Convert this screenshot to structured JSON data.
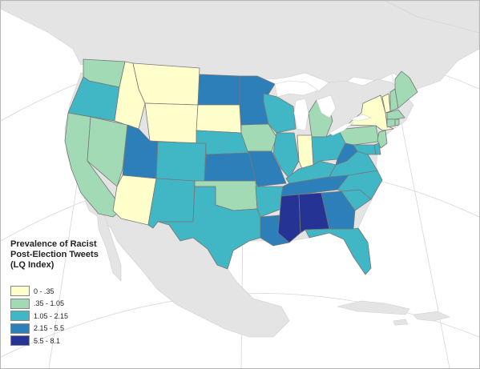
{
  "legend": {
    "title_lines": [
      "Prevalence of Racist",
      "Post-Election Tweets",
      "(LQ Index)"
    ],
    "items": [
      {
        "label": "0 - .35",
        "color": "#ffffcc"
      },
      {
        "label": ".35 - 1.05",
        "color": "#a1dab4"
      },
      {
        "label": "1.05 - 2.15",
        "color": "#41b6c4"
      },
      {
        "label": "2.15 - 5.5",
        "color": "#2c7fb8"
      },
      {
        "label": "5.5 - 8.1",
        "color": "#253494"
      }
    ]
  },
  "map_colors": {
    "water": "#ffffff",
    "land": "#e4e4e4",
    "border": "#777777",
    "graticule": "#d6d6d6"
  },
  "states": [
    {
      "id": "WA",
      "class": 1
    },
    {
      "id": "OR",
      "class": 2
    },
    {
      "id": "CA",
      "class": 1
    },
    {
      "id": "NV",
      "class": 1
    },
    {
      "id": "ID",
      "class": 0
    },
    {
      "id": "MT",
      "class": 0
    },
    {
      "id": "WY",
      "class": 0
    },
    {
      "id": "UT",
      "class": 3
    },
    {
      "id": "AZ",
      "class": 0
    },
    {
      "id": "CO",
      "class": 2
    },
    {
      "id": "NM",
      "class": 2
    },
    {
      "id": "ND",
      "class": 3
    },
    {
      "id": "SD",
      "class": 0
    },
    {
      "id": "NE",
      "class": 2
    },
    {
      "id": "KS",
      "class": 3
    },
    {
      "id": "OK",
      "class": 1
    },
    {
      "id": "TX",
      "class": 2
    },
    {
      "id": "MN",
      "class": 3
    },
    {
      "id": "IA",
      "class": 1
    },
    {
      "id": "MO",
      "class": 3
    },
    {
      "id": "AR",
      "class": 2
    },
    {
      "id": "LA",
      "class": 3
    },
    {
      "id": "WI",
      "class": 2
    },
    {
      "id": "IL",
      "class": 2
    },
    {
      "id": "MI",
      "class": 1
    },
    {
      "id": "IN",
      "class": 0
    },
    {
      "id": "OH",
      "class": 2
    },
    {
      "id": "KY",
      "class": 2
    },
    {
      "id": "TN",
      "class": 3
    },
    {
      "id": "MS",
      "class": 4
    },
    {
      "id": "AL",
      "class": 4
    },
    {
      "id": "GA",
      "class": 3
    },
    {
      "id": "FL",
      "class": 2
    },
    {
      "id": "SC",
      "class": 2
    },
    {
      "id": "NC",
      "class": 2
    },
    {
      "id": "VA",
      "class": 2
    },
    {
      "id": "WV",
      "class": 3
    },
    {
      "id": "PA",
      "class": 1
    },
    {
      "id": "NY",
      "class": 0
    },
    {
      "id": "VT",
      "class": 0
    },
    {
      "id": "NH",
      "class": 1
    },
    {
      "id": "ME",
      "class": 1
    },
    {
      "id": "MA",
      "class": 1
    },
    {
      "id": "CT",
      "class": 1
    },
    {
      "id": "RI",
      "class": 1
    },
    {
      "id": "NJ",
      "class": 1
    },
    {
      "id": "DE",
      "class": 2
    },
    {
      "id": "MD",
      "class": 2
    }
  ]
}
